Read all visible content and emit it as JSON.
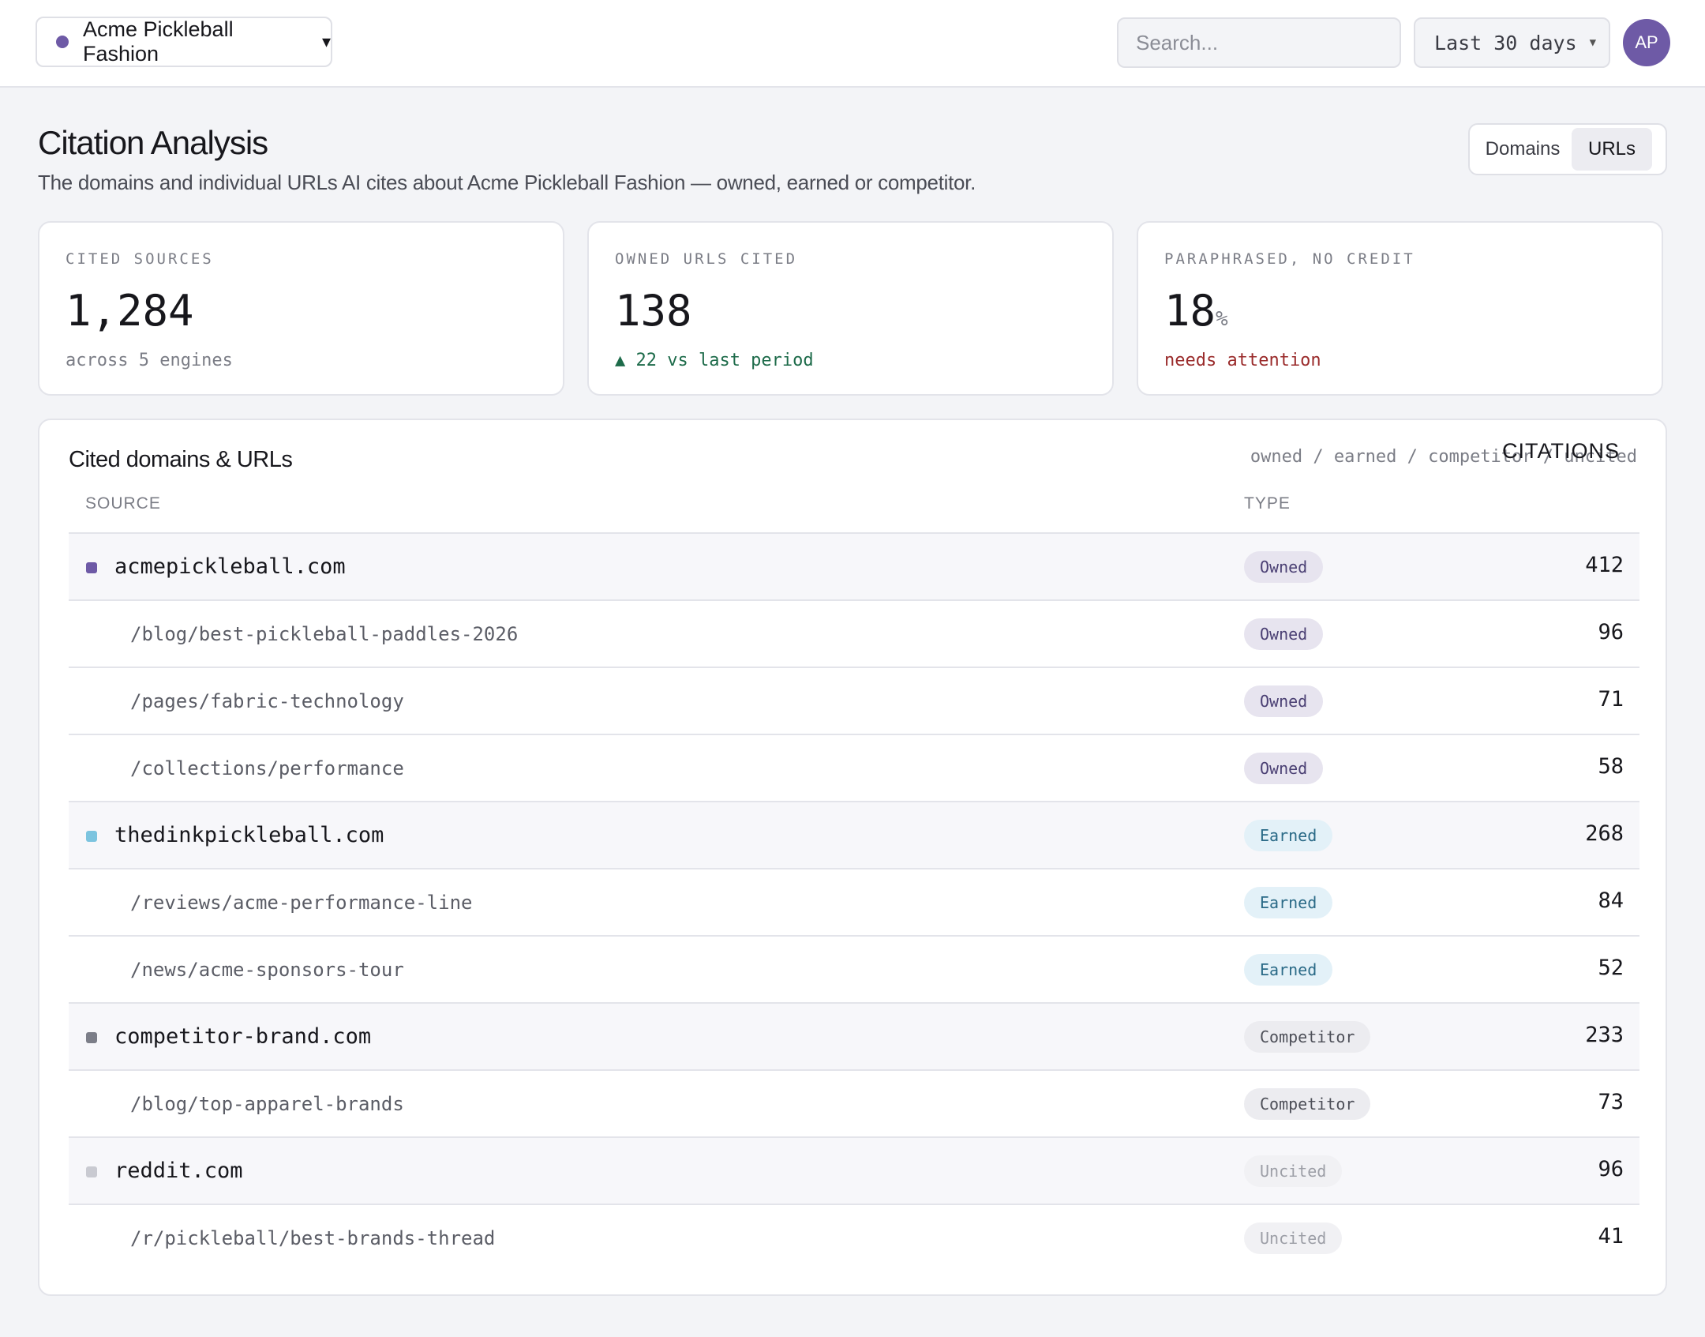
{
  "topbar": {
    "brand_name": "Acme Pickleball Fashion",
    "brand_dot_color": "#6e5aa6",
    "search_placeholder": "Search...",
    "date_range": "Last 30 days",
    "avatar_initials": "AP"
  },
  "header": {
    "title": "Citation Analysis",
    "subtitle": "The domains and individual URLs AI cites about Acme Pickleball Fashion — owned, earned or competitor.",
    "toggle": [
      "Domains",
      "URLs"
    ],
    "toggle_selected": "URLs"
  },
  "kpis": [
    {
      "label": "CITED SOURCES",
      "value": "1,284",
      "unit": "",
      "note": "across 5 engines",
      "note_tone": "muted"
    },
    {
      "label": "OWNED URLS CITED",
      "value": "138",
      "unit": "",
      "note": "▲ 22 vs last period",
      "note_tone": "up"
    },
    {
      "label": "PARAPHRASED, NO CREDIT",
      "value": "18",
      "unit": "%",
      "note": "needs attention",
      "note_tone": "warn"
    }
  ],
  "table": {
    "title": "Cited domains & URLs",
    "legend": "owned / earned / competitor / uncited",
    "columns": [
      "SOURCE",
      "TYPE",
      "CITATIONS"
    ],
    "rows": [
      {
        "kind": "domain",
        "source": "acmepickleball.com",
        "type": "Owned",
        "citations": "412",
        "swatch": "#6e5aa6"
      },
      {
        "kind": "url",
        "source": "/blog/best-pickleball-paddles-2026",
        "type": "Owned",
        "citations": "96"
      },
      {
        "kind": "url",
        "source": "/pages/fabric-technology",
        "type": "Owned",
        "citations": "71"
      },
      {
        "kind": "url",
        "source": "/collections/performance",
        "type": "Owned",
        "citations": "58"
      },
      {
        "kind": "domain",
        "source": "thedinkpickleball.com",
        "type": "Earned",
        "citations": "268",
        "swatch": "#7cc4df"
      },
      {
        "kind": "url",
        "source": "/reviews/acme-performance-line",
        "type": "Earned",
        "citations": "84"
      },
      {
        "kind": "url",
        "source": "/news/acme-sponsors-tour",
        "type": "Earned",
        "citations": "52"
      },
      {
        "kind": "domain",
        "source": "competitor-brand.com",
        "type": "Competitor",
        "citations": "233",
        "swatch": "#7c7e88"
      },
      {
        "kind": "url",
        "source": "/blog/top-apparel-brands",
        "type": "Competitor",
        "citations": "73"
      },
      {
        "kind": "domain",
        "source": "reddit.com",
        "type": "Uncited",
        "citations": "96",
        "swatch": "#c9cad1"
      },
      {
        "kind": "url",
        "source": "/r/pickleball/best-brands-thread",
        "type": "Uncited",
        "citations": "41"
      }
    ]
  }
}
